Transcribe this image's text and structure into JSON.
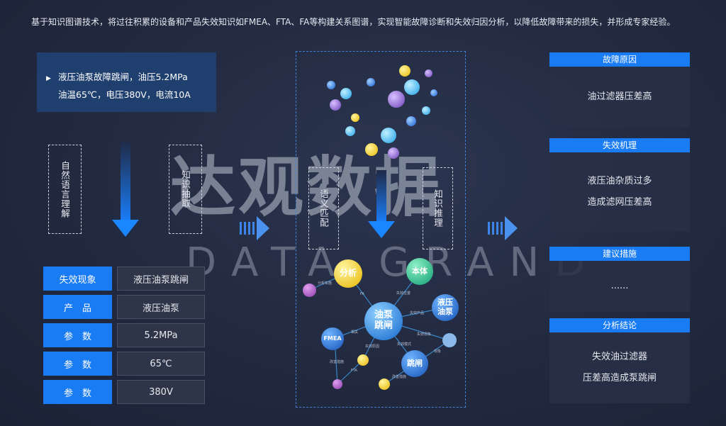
{
  "intro": "基于知识图谱技术，将过往积累的设备和产品失效知识如FMEA、FTA、FA等构建关系图谱，实现智能故障诊断和失效归因分析，以降低故障带来的损失，并形成专家经验。",
  "input": {
    "line1": "液压油泵故障跳闸，油压5.2MPa",
    "line2": "油温65℃，电压380V，电流10A"
  },
  "steps": {
    "nlu": "自然语言理解",
    "extract": "知识抽取",
    "match": "语义匹配",
    "reason": "知识推理"
  },
  "watermark": {
    "cn": "达观数据",
    "en": "DATA GRAND"
  },
  "table": [
    {
      "key": "失效现象",
      "value": "液压油泵跳闸"
    },
    {
      "key": "产　品",
      "value": "液压油泵"
    },
    {
      "key": "参　数",
      "value": "5.2MPa"
    },
    {
      "key": "参　数",
      "value": "65℃"
    },
    {
      "key": "参　数",
      "value": "380V"
    }
  ],
  "graph": {
    "nodes": {
      "center": "油泵跳闸",
      "analysis": "分析",
      "body": "本体",
      "pump": "液压油泵",
      "fmea": "FMEA",
      "trip": "跳闸"
    },
    "edges": {
      "e1": "分析实施",
      "e2": "FA",
      "e3": "失效位置",
      "e4": "失效产品",
      "e5": "失效现象",
      "e6": "现象",
      "e7": "失效模式",
      "e8": "失效原因",
      "e9": "相关",
      "e10": "改善措施",
      "e11": "FTA",
      "e12": "改善措施"
    }
  },
  "cards": [
    {
      "title": "故障原因",
      "lines": [
        "油过滤器压差高"
      ]
    },
    {
      "title": "失效机理",
      "lines": [
        "液压油杂质过多",
        "造成滤网压差高"
      ]
    },
    {
      "title": "建议措施",
      "lines": [
        "......"
      ]
    },
    {
      "title": "分析结论",
      "lines": [
        "失效油过滤器",
        "压差高造成泵跳闸"
      ]
    }
  ],
  "colors": {
    "accent": "#1a7cf5",
    "background": "#222a40"
  }
}
